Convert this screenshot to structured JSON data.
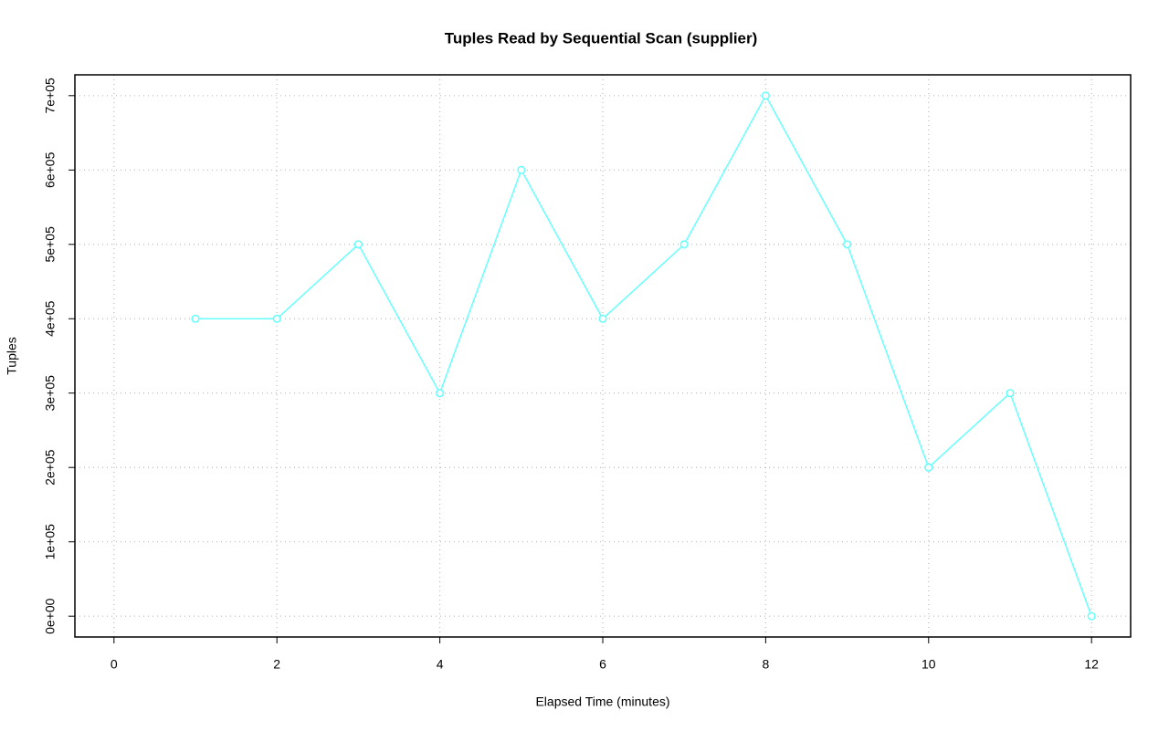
{
  "chart_data": {
    "type": "line",
    "title": "Tuples Read by Sequential Scan (supplier)",
    "x_label": "Elapsed Time (minutes)",
    "y_label": "Tuples",
    "x": [
      1,
      2,
      3,
      4,
      5,
      6,
      7,
      8,
      9,
      10,
      11,
      12
    ],
    "series": [
      {
        "name": "supplier",
        "color": "#66ffff",
        "values": [
          400000,
          400000,
          500000,
          300000,
          600000,
          400000,
          500000,
          700000,
          500000,
          200000,
          300000,
          0
        ]
      }
    ],
    "xlim": [
      -0.48,
      12.48
    ],
    "xticks": [
      0,
      2,
      4,
      6,
      8,
      10,
      12
    ],
    "ylim": [
      -28000,
      728000
    ],
    "yticks": [
      {
        "value": 0,
        "label": "0e+00"
      },
      {
        "value": 100000,
        "label": "1e+05"
      },
      {
        "value": 200000,
        "label": "2e+05"
      },
      {
        "value": 300000,
        "label": "3e+05"
      },
      {
        "value": 400000,
        "label": "4e+05"
      },
      {
        "value": 500000,
        "label": "5e+05"
      },
      {
        "value": 600000,
        "label": "6e+05"
      },
      {
        "value": 700000,
        "label": "7e+05"
      }
    ],
    "grid": true
  }
}
